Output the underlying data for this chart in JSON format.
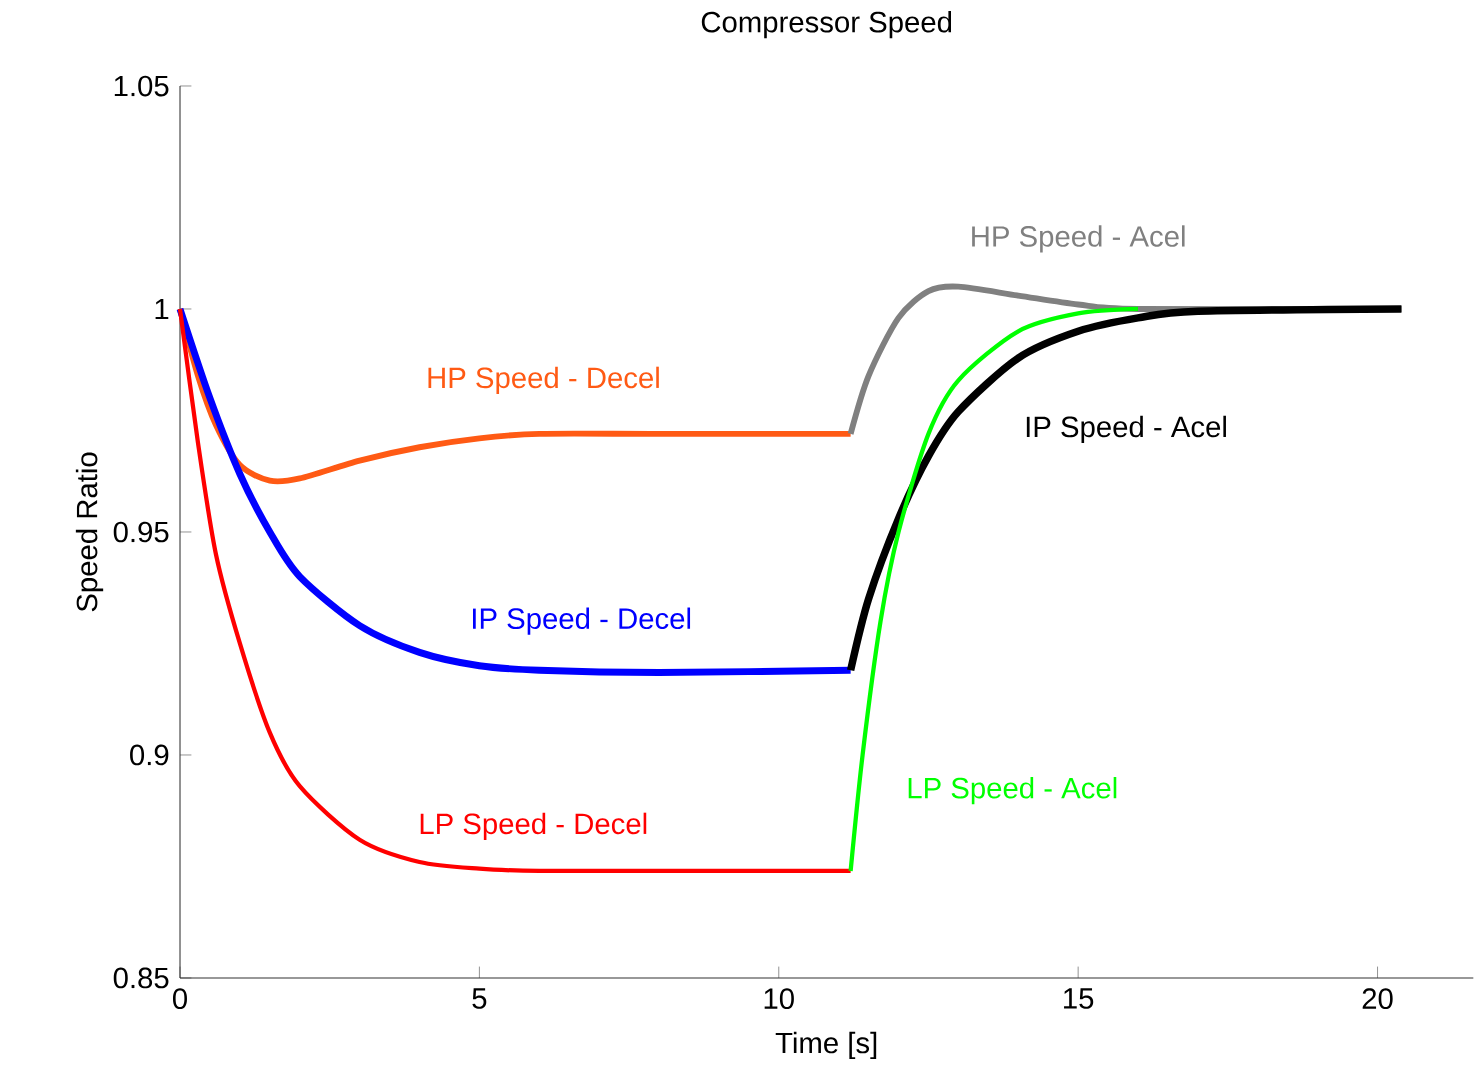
{
  "chart_data": {
    "type": "line",
    "title": "Compressor Speed",
    "xlabel": "Time [s]",
    "ylabel": "Speed Ratio",
    "xlim": [
      0,
      21.6
    ],
    "ylim": [
      0.85,
      1.05
    ],
    "xticks": [
      0,
      5,
      10,
      15,
      20
    ],
    "yticks": [
      0.85,
      0.9,
      0.95,
      1,
      1.05
    ],
    "grid": false,
    "marker": "none",
    "line_style": "solid",
    "series": [
      {
        "name": "HP Speed - Decel",
        "color": "#ff5a14",
        "x": [
          0,
          0.3,
          0.6,
          1,
          1.5,
          2,
          3,
          4,
          5,
          6,
          8,
          11.2
        ],
        "values": [
          1,
          0.985,
          0.974,
          0.965,
          0.9615,
          0.962,
          0.966,
          0.969,
          0.971,
          0.972,
          0.972,
          0.972
        ]
      },
      {
        "name": "IP Speed - Decel",
        "color": "#0000ff",
        "x": [
          0,
          0.5,
          1,
          1.5,
          2,
          3,
          4,
          5,
          6,
          8,
          11.2
        ],
        "values": [
          1,
          0.98,
          0.963,
          0.95,
          0.94,
          0.929,
          0.923,
          0.92,
          0.919,
          0.9185,
          0.919
        ]
      },
      {
        "name": "LP Speed - Decel",
        "color": "#ff0000",
        "x": [
          0,
          0.3,
          0.6,
          1,
          1.5,
          2,
          3,
          4,
          5,
          6,
          8,
          11.2
        ],
        "values": [
          1,
          0.97,
          0.945,
          0.925,
          0.905,
          0.893,
          0.881,
          0.876,
          0.8745,
          0.874,
          0.874,
          0.874
        ]
      },
      {
        "name": "HP Speed - Acel",
        "color": "#808080",
        "x": [
          11.2,
          11.5,
          12,
          12.5,
          13,
          14,
          15,
          16,
          20.4
        ],
        "values": [
          0.972,
          0.985,
          0.998,
          1.004,
          1.005,
          1.003,
          1.001,
          1.0,
          1.0
        ]
      },
      {
        "name": "IP Speed - Acel",
        "color": "#000000",
        "x": [
          11.2,
          11.5,
          12,
          12.5,
          13,
          14,
          15,
          16,
          17,
          20.4
        ],
        "values": [
          0.919,
          0.935,
          0.953,
          0.967,
          0.977,
          0.989,
          0.995,
          0.998,
          0.9995,
          1.0
        ]
      },
      {
        "name": "LP Speed - Acel",
        "color": "#00ff00",
        "x": [
          11.2,
          11.4,
          11.7,
          12,
          12.5,
          13,
          14,
          15,
          16
        ],
        "values": [
          0.874,
          0.9,
          0.93,
          0.95,
          0.972,
          0.984,
          0.995,
          0.999,
          1.0
        ]
      }
    ]
  }
}
